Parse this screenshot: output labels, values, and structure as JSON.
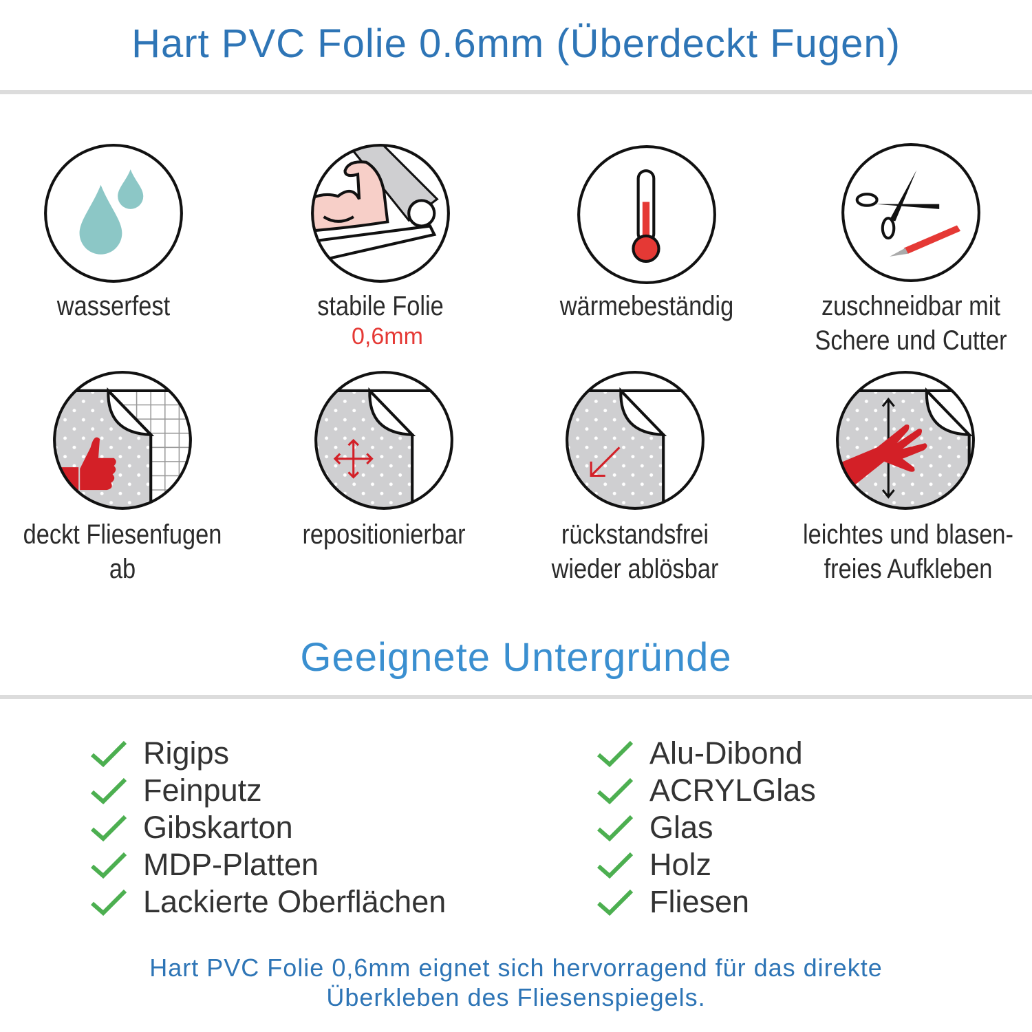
{
  "header": {
    "title": "Hart PVC Folie 0.6mm (Überdeckt Fugen)"
  },
  "features": [
    {
      "label": "wasserfest",
      "icon": "water-drops-icon"
    },
    {
      "label": "stabile Folie",
      "sublabel": "0,6mm",
      "icon": "strong-arm-roll-icon"
    },
    {
      "label": "wärmebeständig",
      "icon": "thermometer-icon"
    },
    {
      "label": "zuschneidbar mit",
      "label2": "Schere und Cutter",
      "icon": "scissors-cutter-icon"
    },
    {
      "label": "deckt Fliesenfugen ab",
      "icon": "thumbs-up-tiles-icon"
    },
    {
      "label": "repositionierbar",
      "icon": "move-arrows-icon"
    },
    {
      "label": "rückstandsfrei",
      "label2": "wieder ablösbar",
      "icon": "peel-arrow-icon"
    },
    {
      "label": "leichtes und blasen-",
      "label2": "freies Aufkleben",
      "icon": "hand-smooth-icon"
    }
  ],
  "surfaces": {
    "title": "Geeignete Untergründe",
    "left": [
      "Rigips",
      "Feinputz",
      "Gibskarton",
      "MDP-Platten",
      "Lackierte Oberflächen"
    ],
    "right": [
      "Alu-Dibond",
      "ACRYLGlas",
      "Glas",
      "Holz",
      "Fliesen"
    ]
  },
  "footer": {
    "line1": "Hart PVC Folie 0,6mm eignet sich hervorragend für das direkte",
    "line2": "Überkleben des Fliesenspiegels."
  },
  "colors": {
    "title": "#2e75b6",
    "accent_red": "#e53935",
    "check": "#4caf50",
    "drop": "#8cc7c6",
    "sheet": "#cfcfd1"
  }
}
